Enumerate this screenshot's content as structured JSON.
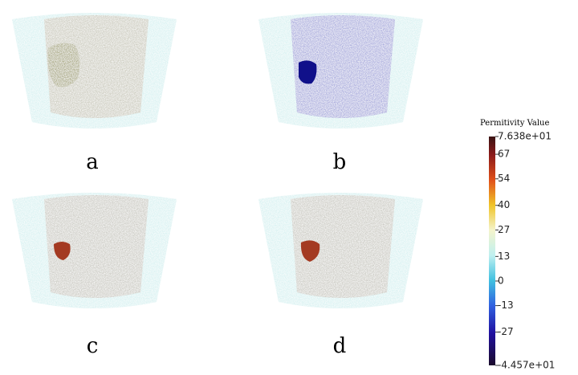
{
  "panels": [
    {
      "label": "a"
    },
    {
      "label": "b"
    },
    {
      "label": "c"
    },
    {
      "label": "d"
    }
  ],
  "colorbar": {
    "title": "Permitivity Value",
    "ticks": [
      {
        "value": 76.38,
        "label": "7.638e+01"
      },
      67,
      54,
      40,
      27,
      13,
      0,
      -13,
      -27,
      {
        "value": -44.57,
        "label": "-4.457e+01"
      }
    ]
  }
}
